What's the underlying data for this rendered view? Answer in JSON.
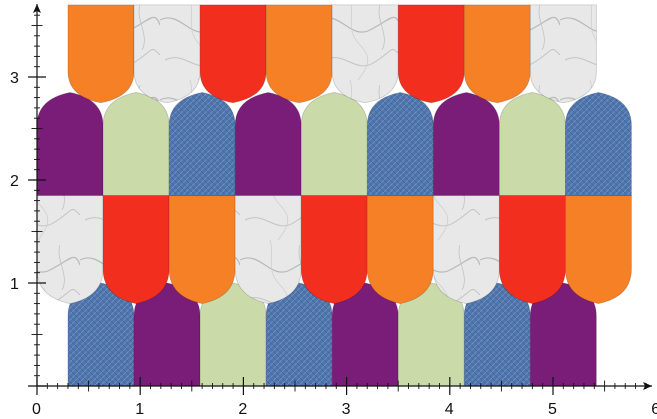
{
  "axes": {
    "x_range": [
      0,
      6
    ],
    "y_range": [
      0,
      3.8
    ],
    "x_tick_labels": [
      "0",
      "1",
      "2",
      "3",
      "4",
      "5",
      "6"
    ],
    "y_tick_labels": [
      "1",
      "2",
      "3"
    ],
    "minor_ticks_per_unit": 10,
    "arrows": true
  },
  "colors": {
    "orange": "#f58025",
    "red": "#f22f1f",
    "purple": "#7a1d78",
    "sage": "#cadaa9",
    "denim": "#4f75ad",
    "marble": "#e7e7e7"
  },
  "rows": [
    {
      "direction": "up",
      "y_bottom": 0.0,
      "y_top": 1.0,
      "x_start": 0.3,
      "tile_width": 0.64,
      "pieces": [
        "denim",
        "purple",
        "sage",
        "denim",
        "purple",
        "sage",
        "denim",
        "purple"
      ]
    },
    {
      "direction": "down",
      "y_bottom": 0.8,
      "y_top": 1.85,
      "x_start": 0.0,
      "tile_width": 0.64,
      "pieces": [
        "marble",
        "red",
        "orange",
        "marble",
        "red",
        "orange",
        "marble",
        "red",
        "orange"
      ]
    },
    {
      "direction": "up",
      "y_bottom": 1.85,
      "y_top": 2.85,
      "x_start": 0.0,
      "tile_width": 0.64,
      "pieces": [
        "purple",
        "sage",
        "denim",
        "purple",
        "sage",
        "denim",
        "purple",
        "sage",
        "denim"
      ]
    },
    {
      "direction": "down",
      "y_bottom": 2.75,
      "y_top": 3.7,
      "x_start": 0.3,
      "tile_width": 0.64,
      "pieces": [
        "orange",
        "marble",
        "red",
        "orange",
        "marble",
        "red",
        "orange",
        "marble"
      ]
    }
  ]
}
